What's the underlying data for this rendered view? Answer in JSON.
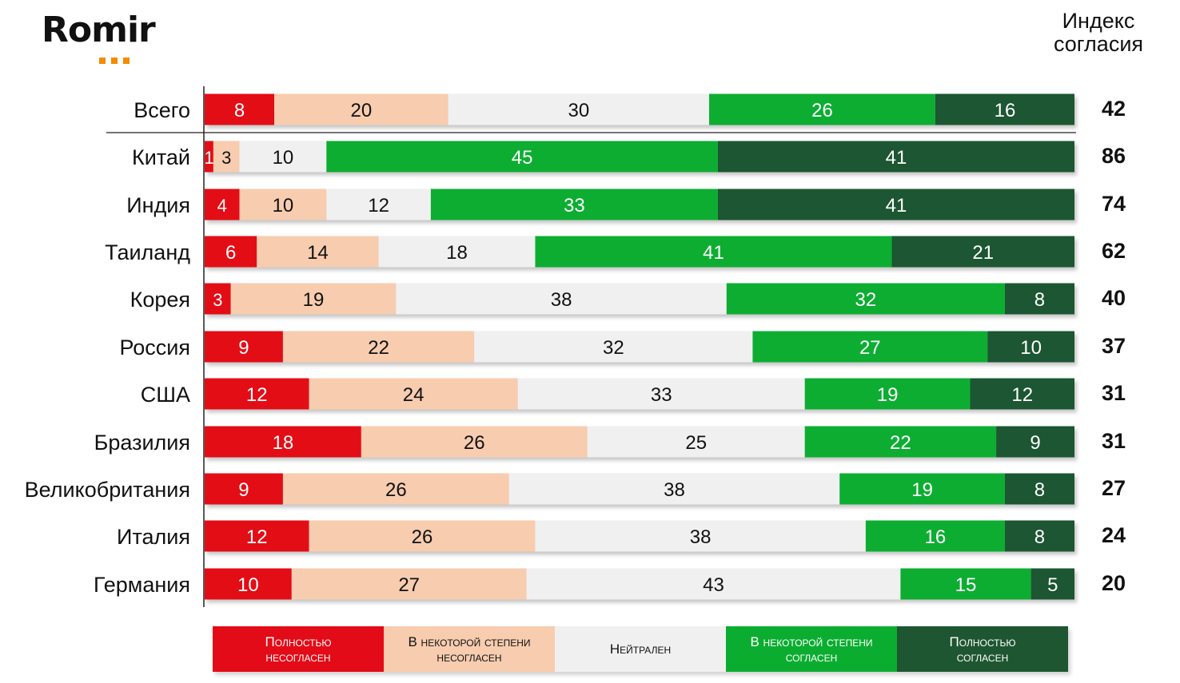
{
  "brand": {
    "name": "Romir",
    "dot_color": "#F28C00",
    "dot_count": 3
  },
  "index_header": "Индекс\nсогласия",
  "colors": {
    "fully_disagree": "#E30B17",
    "somewhat_disagree": "#F7CCAF",
    "neutral": "#F0F0F0",
    "somewhat_agree": "#0BAD30",
    "fully_agree": "#1E5631"
  },
  "legend": [
    {
      "label": "Полностью\nнесогласен",
      "color": "#E30B17",
      "text_color": "#ffffff"
    },
    {
      "label": "В некоторой степени\nнесогласен",
      "color": "#F7CCAF",
      "text_color": "#111111"
    },
    {
      "label": "Нейтрален",
      "color": "#F0F0F0",
      "text_color": "#111111"
    },
    {
      "label": "В некоторой степени\nсогласен",
      "color": "#0BAD30",
      "text_color": "#ffffff"
    },
    {
      "label": "Полностью\nсогласен",
      "color": "#1E5631",
      "text_color": "#ffffff"
    }
  ],
  "chart_data": {
    "type": "bar",
    "orientation": "horizontal",
    "stacked": true,
    "categories": [
      "Всего",
      "Китай",
      "Индия",
      "Таиланд",
      "Корея",
      "Россия",
      "США",
      "Бразилия",
      "Великобритания",
      "Италия",
      "Германия"
    ],
    "series": [
      {
        "name": "Полностью несогласен",
        "color": "#E30B17",
        "text_color": "#ffffff",
        "values": [
          8,
          1,
          4,
          6,
          3,
          9,
          12,
          18,
          9,
          12,
          10
        ]
      },
      {
        "name": "В некоторой степени несогласен",
        "color": "#F7CCAF",
        "text_color": "#111111",
        "values": [
          20,
          3,
          10,
          14,
          19,
          22,
          24,
          26,
          26,
          26,
          27
        ]
      },
      {
        "name": "Нейтрален",
        "color": "#F0F0F0",
        "text_color": "#111111",
        "values": [
          30,
          10,
          12,
          18,
          38,
          32,
          33,
          25,
          38,
          38,
          43
        ]
      },
      {
        "name": "В некоторой степени согласен",
        "color": "#0BAD30",
        "text_color": "#ffffff",
        "values": [
          26,
          45,
          33,
          41,
          32,
          27,
          19,
          22,
          19,
          16,
          15
        ]
      },
      {
        "name": "Полностью согласен",
        "color": "#1E5631",
        "text_color": "#ffffff",
        "values": [
          16,
          41,
          41,
          21,
          8,
          10,
          12,
          9,
          8,
          8,
          5
        ]
      }
    ],
    "index": {
      "title": "Индекс согласия",
      "values": [
        42,
        86,
        74,
        62,
        40,
        37,
        31,
        31,
        27,
        24,
        20
      ]
    },
    "xlim": [
      0,
      100
    ]
  }
}
